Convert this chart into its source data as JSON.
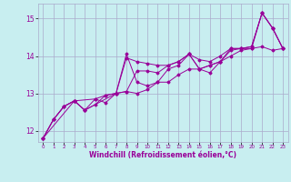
{
  "xlabel": "Windchill (Refroidissement éolien,°C)",
  "ylabel": "",
  "bg_color": "#c8eef0",
  "line_color": "#990099",
  "grid_color": "#aaaacc",
  "xlim": [
    -0.5,
    23.5
  ],
  "ylim": [
    11.7,
    15.4
  ],
  "yticks": [
    12,
    13,
    14,
    15
  ],
  "xticks": [
    0,
    1,
    2,
    3,
    4,
    5,
    6,
    7,
    8,
    9,
    10,
    11,
    12,
    13,
    14,
    15,
    16,
    17,
    18,
    19,
    20,
    21,
    22,
    23
  ],
  "lines": [
    {
      "x": [
        0,
        1,
        2,
        3,
        4,
        5,
        6,
        7,
        8,
        9,
        10,
        11,
        12,
        13,
        14,
        15,
        16,
        17,
        18,
        19,
        20,
        21,
        22,
        23
      ],
      "y": [
        11.8,
        12.3,
        12.65,
        12.8,
        12.55,
        12.85,
        12.75,
        13.0,
        13.95,
        13.85,
        13.8,
        13.75,
        13.75,
        13.85,
        14.05,
        13.65,
        13.55,
        13.85,
        14.2,
        14.2,
        14.25,
        15.15,
        14.75,
        14.2
      ]
    },
    {
      "x": [
        0,
        1,
        2,
        3,
        4,
        5,
        6,
        7,
        8,
        9,
        10,
        11,
        12,
        13,
        14,
        15,
        16,
        17,
        18,
        19,
        20,
        21,
        22,
        23
      ],
      "y": [
        11.8,
        12.3,
        12.65,
        12.8,
        12.55,
        12.7,
        12.95,
        13.0,
        13.05,
        13.0,
        13.1,
        13.3,
        13.3,
        13.5,
        13.65,
        13.65,
        13.75,
        13.85,
        14.0,
        14.15,
        14.2,
        14.25,
        14.15,
        14.2
      ]
    },
    {
      "x": [
        0,
        3,
        4,
        7,
        8,
        9,
        10,
        11,
        12,
        13,
        14,
        15,
        16,
        17,
        18,
        19,
        20,
        21,
        22,
        23
      ],
      "y": [
        11.8,
        12.8,
        12.55,
        13.0,
        14.05,
        13.3,
        13.2,
        13.3,
        13.65,
        13.75,
        14.05,
        13.65,
        13.75,
        13.85,
        14.15,
        14.2,
        14.2,
        15.15,
        14.75,
        14.2
      ]
    },
    {
      "x": [
        0,
        1,
        2,
        3,
        5,
        6,
        8,
        9,
        10,
        11,
        12,
        13,
        14,
        15,
        16,
        17,
        18,
        19,
        20,
        21,
        22,
        23
      ],
      "y": [
        11.8,
        12.3,
        12.65,
        12.8,
        12.85,
        12.95,
        13.05,
        13.6,
        13.6,
        13.55,
        13.75,
        13.85,
        14.05,
        13.9,
        13.85,
        14.0,
        14.2,
        14.2,
        14.25,
        15.15,
        14.75,
        14.2
      ]
    }
  ]
}
